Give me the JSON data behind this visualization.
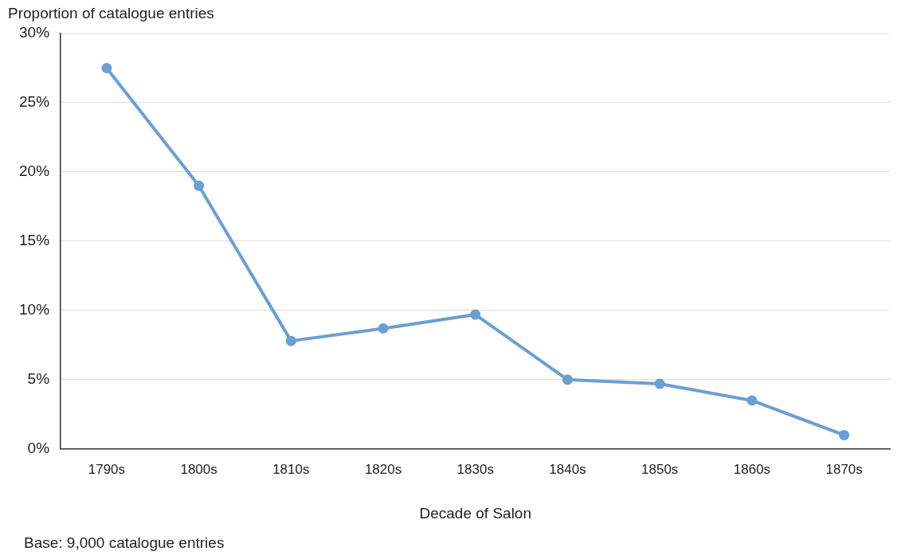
{
  "chart_data": {
    "type": "line",
    "ylabel": "Proportion of catalogue entries",
    "xlabel": "Decade of Salon",
    "annotations": [
      "Base: 9,000 catalogue entries"
    ],
    "categories": [
      "1790s",
      "1800s",
      "1810s",
      "1820s",
      "1830s",
      "1840s",
      "1850s",
      "1860s",
      "1870s"
    ],
    "series": [
      {
        "color": "#6a9fd4",
        "values": [
          27.5,
          19,
          7.8,
          8.7,
          9.7,
          5.0,
          4.7,
          3.5,
          1.0
        ]
      }
    ],
    "ylim": [
      0,
      30
    ],
    "yticks": [
      {
        "value": 0,
        "label": "0%"
      },
      {
        "value": 5,
        "label": "5%"
      },
      {
        "value": 10,
        "label": "10%"
      },
      {
        "value": 15,
        "label": "15%"
      },
      {
        "value": 20,
        "label": "20%"
      },
      {
        "value": 25,
        "label": "25%"
      },
      {
        "value": 30,
        "label": "30%"
      }
    ],
    "grid": "y",
    "legend": false,
    "marker": "circle",
    "line_style": "solid"
  }
}
